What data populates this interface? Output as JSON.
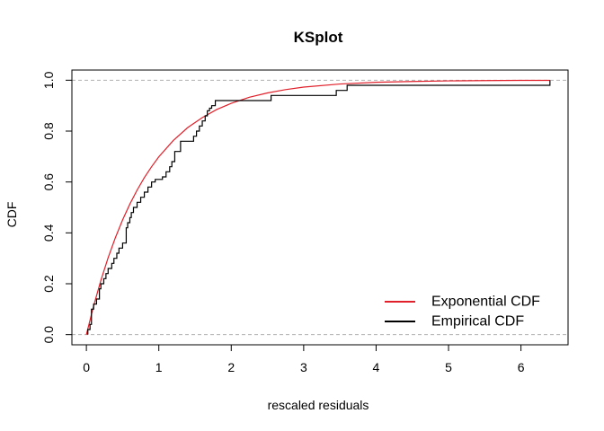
{
  "chart_data": {
    "type": "line",
    "title": "KSplot",
    "xlabel": "rescaled residuals",
    "ylabel": "CDF",
    "xlim": [
      -0.2,
      6.65
    ],
    "ylim": [
      -0.04,
      1.04
    ],
    "x_ticks": [
      0,
      1,
      2,
      3,
      4,
      5,
      6
    ],
    "y_ticks": [
      0.0,
      0.2,
      0.4,
      0.6,
      0.8,
      1.0
    ],
    "x_tick_labels": [
      "0",
      "1",
      "2",
      "3",
      "4",
      "5",
      "6"
    ],
    "y_tick_labels": [
      "0.0",
      "0.2",
      "0.4",
      "0.6",
      "0.8",
      "1.0"
    ],
    "reference_lines_y": [
      0,
      1
    ],
    "grid": false,
    "legend_position": "bottom-right",
    "series": [
      {
        "name": "Exponential CDF",
        "color": "#e0202a",
        "style": "line",
        "rate": 1.2,
        "x": [
          0,
          0.1,
          0.2,
          0.3,
          0.4,
          0.5,
          0.6,
          0.7,
          0.8,
          0.9,
          1.0,
          1.2,
          1.4,
          1.6,
          1.8,
          2.0,
          2.25,
          2.5,
          2.75,
          3.0,
          3.5,
          4.0,
          4.5,
          5.0,
          5.5,
          6.0,
          6.4
        ],
        "y": [
          0,
          0.113,
          0.213,
          0.302,
          0.381,
          0.451,
          0.513,
          0.568,
          0.617,
          0.66,
          0.699,
          0.763,
          0.814,
          0.853,
          0.885,
          0.909,
          0.933,
          0.95,
          0.963,
          0.973,
          0.985,
          0.992,
          0.995,
          0.9975,
          0.9986,
          0.9993,
          0.9995
        ]
      },
      {
        "name": "Empirical CDF",
        "color": "#000000",
        "style": "step",
        "x": [
          0.02,
          0.05,
          0.07,
          0.1,
          0.14,
          0.18,
          0.2,
          0.24,
          0.27,
          0.3,
          0.35,
          0.38,
          0.42,
          0.45,
          0.5,
          0.55,
          0.57,
          0.6,
          0.62,
          0.65,
          0.7,
          0.75,
          0.8,
          0.85,
          0.9,
          0.95,
          1.05,
          1.1,
          1.15,
          1.18,
          1.22,
          1.3,
          1.48,
          1.52,
          1.56,
          1.6,
          1.64,
          1.67,
          1.7,
          1.73,
          1.78,
          1.84,
          2.55,
          3.45,
          3.6,
          6.4
        ],
        "y": [
          0.02,
          0.04,
          0.1,
          0.12,
          0.14,
          0.18,
          0.2,
          0.22,
          0.24,
          0.26,
          0.28,
          0.3,
          0.32,
          0.34,
          0.36,
          0.42,
          0.44,
          0.46,
          0.48,
          0.5,
          0.52,
          0.54,
          0.56,
          0.58,
          0.6,
          0.61,
          0.62,
          0.64,
          0.66,
          0.68,
          0.72,
          0.76,
          0.78,
          0.8,
          0.82,
          0.84,
          0.86,
          0.88,
          0.89,
          0.9,
          0.92,
          0.92,
          0.94,
          0.96,
          0.98,
          1.0
        ]
      }
    ]
  }
}
